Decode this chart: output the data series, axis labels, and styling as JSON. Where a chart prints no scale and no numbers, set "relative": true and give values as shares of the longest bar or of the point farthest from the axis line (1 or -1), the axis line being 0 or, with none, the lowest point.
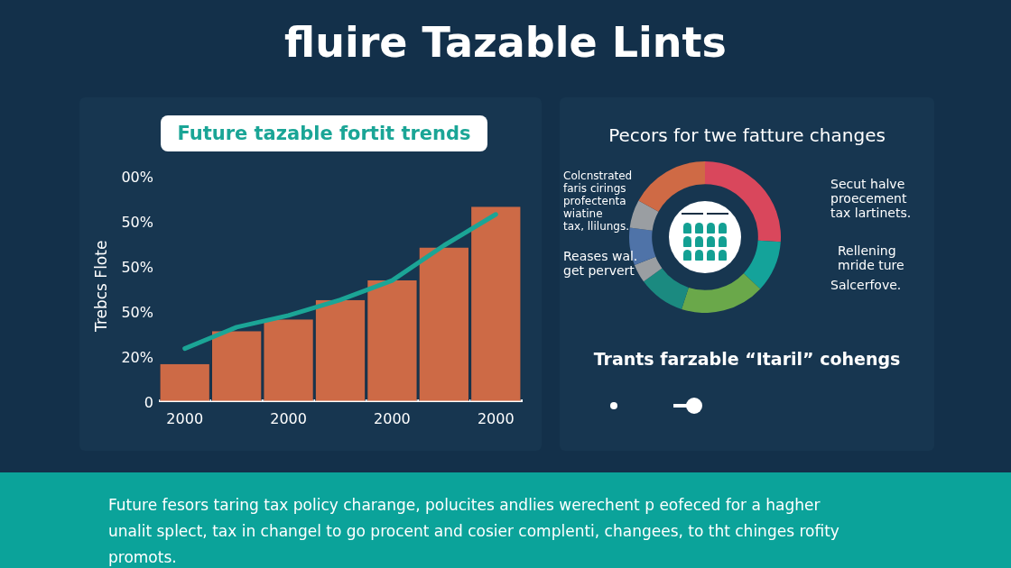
{
  "chart_data": [
    {
      "type": "other",
      "title": "fluire Tazable Lints"
    },
    {
      "type": "bar",
      "title": "Future tazable fortit trends",
      "ylabel": "Trebcs Flote",
      "categories": [
        "2000",
        null,
        "2000",
        null,
        "2000",
        null,
        "2000"
      ],
      "series": [
        {
          "type": "line",
          "color": "#1ba596",
          "values": [
            0.27,
            0.38,
            0.44,
            0.52,
            0.62,
            0.8,
            0.96
          ]
        },
        {
          "type": "bar",
          "color": "#cd6a46",
          "values": [
            0.19,
            0.36,
            0.42,
            0.52,
            0.62,
            0.79,
            1
          ]
        }
      ],
      "relative": true,
      "annotations": [
        "00%",
        "50%",
        "50%",
        "50%",
        "20%",
        "0"
      ],
      "legend": false
    },
    {
      "type": "donut",
      "title": "Pecors for twe fatture changes",
      "categories": [
        null,
        null,
        null,
        null,
        null,
        null,
        null,
        null
      ],
      "values": [
        26,
        11,
        18,
        10,
        4,
        8,
        6,
        17
      ],
      "colors": [
        "#d9475c",
        "#14a39a",
        "#6aa84a",
        "#1b8a80",
        "#9a9ea2",
        "#4f73a8",
        "#9a9ea2",
        "#cf6a45"
      ],
      "legend": false,
      "annotations": [
        "Colcnstrated\nfaris cirings\nprofectenta\nwiatine\ntax, llilungs.",
        "Reases wal.\nget pervert",
        "Secut halve\nproecement\ntax lartinets.",
        "Rellening\nmride ture",
        "Salcerfove.",
        "Trants farzable “Itaril” cohengs"
      ]
    },
    {
      "type": "other",
      "annotations": [
        "Future fesors taring tax policy charange, polucites andlies werechent p eofeced for a hagher unalit splect, tax in changel to go procent and cosier complenti, changees, to tht chinges rofity promots."
      ]
    }
  ]
}
